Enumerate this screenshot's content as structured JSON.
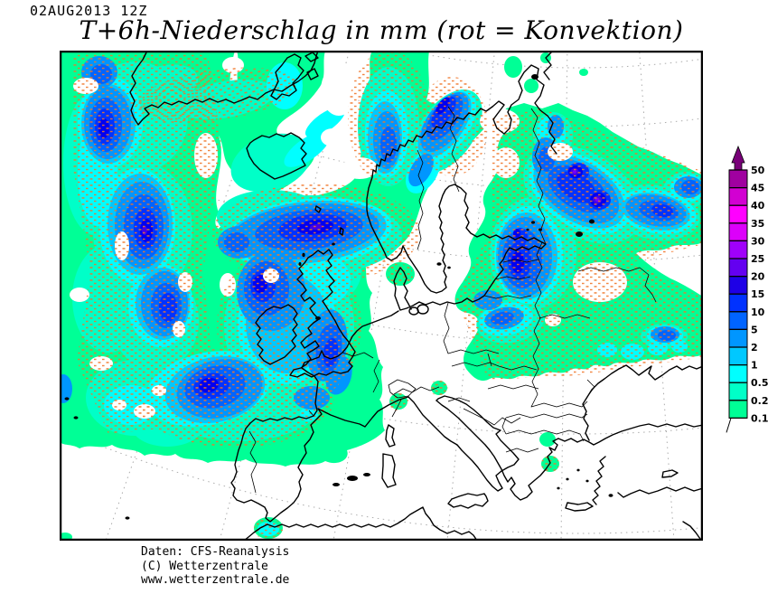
{
  "header": {
    "datetime": "02AUG2013 12Z",
    "title": "T+6h-Niederschlag in mm (rot = Konvektion)"
  },
  "legend": {
    "tick_labels": [
      "50",
      "45",
      "40",
      "35",
      "30",
      "25",
      "20",
      "15",
      "10",
      "5",
      "2",
      "1",
      "0.5",
      "0.2",
      "0.1"
    ],
    "box_colors_top_to_bottom": [
      "#A000A0",
      "#D200D2",
      "#FF00FF",
      "#DC00FA",
      "#A000FA",
      "#6400F0",
      "#1E00E6",
      "#0032FF",
      "#0064FF",
      "#0096FF",
      "#00C8FF",
      "#00FFFF",
      "#00FFC8",
      "#00FF96"
    ],
    "arrow_color": "#780078"
  },
  "map": {
    "frame_color": "#000000",
    "coastline_color": "#000000",
    "graticule_color": "#ACACAC",
    "convection_color": "#F0762A",
    "precip_colors": {
      "mm_0_1": "#00FF96",
      "mm_0_2": "#00FFC8",
      "mm_0_5": "#00FFFF",
      "mm_1": "#00C8FF",
      "mm_2": "#0096FF",
      "mm_5": "#0064FF",
      "mm_10": "#0032FF",
      "mm_15": "#0000F0",
      "mm_20": "#4600E6",
      "mm_25": "#7800FA"
    }
  },
  "footer": {
    "line1": "Daten: CFS-Reanalysis",
    "line2": "(C) Wetterzentrale",
    "line3": "www.wetterzentrale.de"
  }
}
